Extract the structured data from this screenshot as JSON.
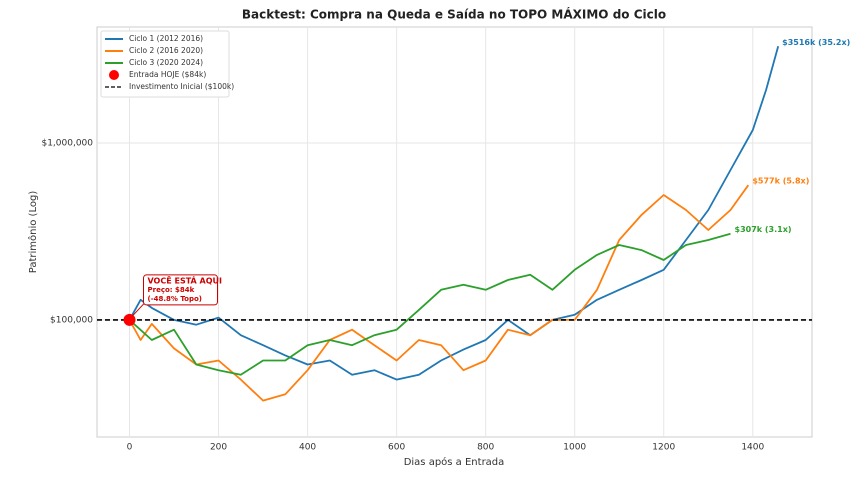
{
  "chart_data": {
    "type": "line",
    "title": "Backtest: Compra na Queda e Saída no TOPO MÁXIMO do Ciclo",
    "x_label": "Dias após a Entrada",
    "y_label": "Patrimônio (Log)",
    "log_y": true,
    "grid": true,
    "legend": "upper left",
    "xlim": [
      -73,
      1533
    ],
    "ylim": [
      21800,
      4520000
    ],
    "xticks": [
      0,
      200,
      400,
      600,
      800,
      1000,
      1200,
      1400
    ],
    "yticks": [
      {
        "value": 100000,
        "label": "$100,000"
      },
      {
        "value": 1000000,
        "label": "$1,000,000"
      }
    ],
    "series": [
      {
        "name": "Ciclo 1 (2012 2016)",
        "color": "#1f77b4",
        "end_label": "$3516k (35.2x)",
        "x": [
          0,
          25,
          50,
          100,
          150,
          200,
          250,
          300,
          350,
          400,
          450,
          500,
          550,
          600,
          650,
          700,
          750,
          800,
          850,
          900,
          950,
          1000,
          1050,
          1100,
          1150,
          1200,
          1250,
          1300,
          1350,
          1400,
          1430,
          1457
        ],
        "values": [
          100000,
          130000,
          117000,
          100000,
          94000,
          103000,
          82000,
          72000,
          63000,
          56000,
          59000,
          49000,
          52000,
          46000,
          49000,
          59000,
          68000,
          77000,
          100000,
          82000,
          100000,
          107000,
          130000,
          148000,
          168000,
          192000,
          283000,
          418000,
          703000,
          1183000,
          1993000,
          3516000
        ]
      },
      {
        "name": "Ciclo 2 (2016 2020)",
        "color": "#ff7f0e",
        "end_label": "$577k (5.8x)",
        "x": [
          0,
          25,
          50,
          100,
          150,
          200,
          250,
          300,
          350,
          400,
          450,
          500,
          550,
          600,
          650,
          700,
          750,
          800,
          850,
          900,
          950,
          1000,
          1050,
          1100,
          1150,
          1200,
          1250,
          1300,
          1350,
          1390
        ],
        "values": [
          100000,
          77000,
          95000,
          69000,
          56000,
          59000,
          46000,
          35000,
          38000,
          52000,
          77000,
          88000,
          72000,
          59000,
          77000,
          72000,
          52000,
          59000,
          88000,
          82000,
          100000,
          100000,
          148000,
          283000,
          392000,
          508000,
          418000,
          322000,
          418000,
          577000
        ]
      },
      {
        "name": "Ciclo 3 (2020 2024)",
        "color": "#2ca02c",
        "end_label": "$307k (3.1x)",
        "x": [
          0,
          50,
          100,
          150,
          200,
          250,
          300,
          350,
          400,
          450,
          500,
          550,
          600,
          650,
          700,
          750,
          800,
          850,
          900,
          950,
          1000,
          1050,
          1100,
          1150,
          1200,
          1250,
          1300,
          1350
        ],
        "values": [
          100000,
          77000,
          88000,
          56000,
          52000,
          49000,
          59000,
          59000,
          72000,
          77000,
          72000,
          82000,
          88000,
          114000,
          148000,
          158000,
          148000,
          168000,
          180000,
          148000,
          192000,
          233000,
          265000,
          248000,
          218000,
          265000,
          283000,
          307000
        ]
      }
    ],
    "marker": {
      "label": "Entrada HOJE ($84k)",
      "color": "#ff0000",
      "x": 0,
      "y": 100000
    },
    "hline": {
      "label": "Investimento Inicial ($100k)",
      "value": 100000,
      "color": "#000000"
    },
    "callout": [
      "VOCÊ ESTÁ AQUI",
      "Preço: $84k",
      "(-48.8% Topo)"
    ]
  }
}
